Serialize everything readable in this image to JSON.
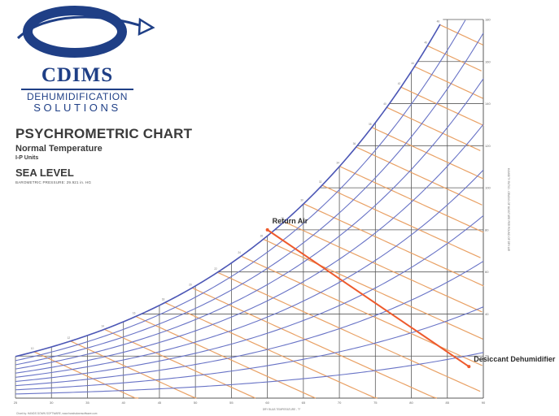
{
  "brand": {
    "name": "CDIMS",
    "line1": "DEHUMIDIFICATION",
    "line2": "SOLUTIONS",
    "color": "#1f3f86"
  },
  "titles": {
    "main": "PSYCHROMETRIC CHART",
    "sub": "Normal Temperature",
    "units": "I-P Units",
    "sea": "SEA LEVEL",
    "baro": "BAROMETRIC PRESSURE: 29.921 in. HG"
  },
  "chart_data": {
    "type": "line",
    "x_range": [
      25,
      90
    ],
    "y_range": [
      0,
      180
    ],
    "x_ticks": [
      25,
      30,
      35,
      40,
      45,
      50,
      55,
      60,
      65,
      70,
      75,
      80,
      85,
      90
    ],
    "y_ticks": [
      20,
      40,
      60,
      80,
      100,
      120,
      140,
      160,
      180
    ],
    "rh_levels": [
      10,
      20,
      30,
      40,
      50,
      60,
      70,
      80,
      90
    ],
    "enthalpy_values": [
      10,
      12,
      14,
      16,
      18,
      20,
      22,
      24,
      26,
      28,
      30,
      32,
      34,
      36,
      38,
      40,
      42,
      44,
      46,
      48,
      50,
      52
    ],
    "process_points": [
      {
        "label": "Return Air",
        "x": 60,
        "y": 80
      },
      {
        "label": "Desiccant Dehumidifier",
        "x": 88,
        "y": 15
      }
    ],
    "xlabel": "DRY BULB TEMPERATURE - °F",
    "ylabel": "HUMIDITY RATIO - GRAINS OF MOISTURE PER POUND OF DRY AIR",
    "credit": "Chart by: HANDS DOWN SOFTWARE, www.handsdownsoftware.com",
    "colors": {
      "grid": "#5a5a5a",
      "rh": "#6873c6",
      "enthalpy": "#e9a165",
      "saturation": "#4b56b5",
      "process": "#ee5a2c"
    },
    "grid": true
  }
}
